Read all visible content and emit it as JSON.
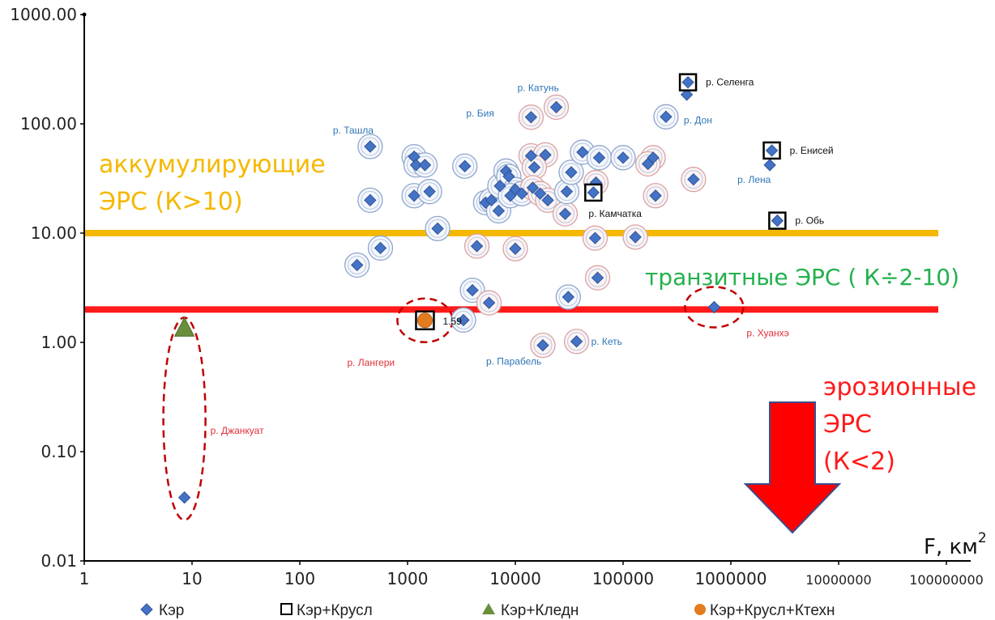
{
  "chart_data": {
    "type": "scatter",
    "x_scale": "log",
    "y_scale": "log",
    "xlim": [
      1,
      100000000
    ],
    "ylim": [
      0.01,
      1000
    ],
    "xlabel_main": "F, км",
    "xlabel_sup": "2",
    "x_ticks": [
      "1",
      "10",
      "100",
      "1000",
      "10000",
      "100000",
      "1000000",
      "10000000",
      "100000000"
    ],
    "y_ticks": [
      "0.01",
      "0.10",
      "1.00",
      "10.00",
      "100.00",
      "1000.00"
    ],
    "thresholds": [
      {
        "value": 10,
        "color": "#F5B800"
      },
      {
        "value": 2,
        "color": "#FF1A1A"
      }
    ],
    "zones": [
      {
        "line1": "аккумулирующие",
        "line2": "ЭРС (К>10)",
        "color": "#F5B800"
      },
      {
        "line1": "транзитные ЭРС ( К÷2-10)",
        "color": "#22B14C"
      },
      {
        "line1": "эрозионные",
        "line2": "ЭРС",
        "line3": "(К<2)",
        "color": "#FF1A1A"
      }
    ],
    "colors": {
      "kэр": "#4472C4",
      "bg": "#ffffff",
      "threshold_high": "#F5B800",
      "threshold_low": "#FF1A1A",
      "arrow": "#FF0000",
      "arrow_border": "#3B4E8C",
      "dashed": "#C00000",
      "label_blue": "#2E75B6",
      "label_red": "#E0303A"
    },
    "legend": [
      {
        "label": "Кэр",
        "marker": "diamond",
        "color": "#4472C4"
      },
      {
        "label": "Кэр+Крусл",
        "marker": "square",
        "color": "#000000"
      },
      {
        "label": "Кэр+Кледн",
        "marker": "triangle",
        "color": "#6B8E3D"
      },
      {
        "label": "Кэр+Крусл+Ктехн",
        "marker": "circle",
        "color": "#E37C1F"
      }
    ],
    "series": [
      {
        "name": "Кэр",
        "marker": "diamond",
        "points": [
          {
            "x": 450,
            "y": 62,
            "ring": "blue"
          },
          {
            "x": 450,
            "y": 20,
            "ring": "blue"
          },
          {
            "x": 340,
            "y": 5.1,
            "ring": "blue"
          },
          {
            "x": 560,
            "y": 7.3,
            "ring": "blue"
          },
          {
            "x": 1150,
            "y": 50,
            "ring": "blue"
          },
          {
            "x": 1200,
            "y": 42,
            "ring": "blue"
          },
          {
            "x": 1450,
            "y": 42,
            "ring": "blue"
          },
          {
            "x": 1150,
            "y": 22,
            "ring": "blue"
          },
          {
            "x": 1600,
            "y": 24,
            "ring": "blue"
          },
          {
            "x": 1900,
            "y": 11,
            "ring": "blue"
          },
          {
            "x": 3400,
            "y": 41,
            "ring": "blue"
          },
          {
            "x": 5300,
            "y": 19,
            "ring": "blue"
          },
          {
            "x": 6000,
            "y": 20,
            "ring": "blue"
          },
          {
            "x": 7200,
            "y": 27,
            "ring": "blue"
          },
          {
            "x": 7000,
            "y": 16,
            "ring": "blue"
          },
          {
            "x": 8200,
            "y": 37,
            "ring": "blue"
          },
          {
            "x": 8700,
            "y": 33,
            "ring": "blue"
          },
          {
            "x": 10000,
            "y": 25,
            "ring": "blue"
          },
          {
            "x": 9000,
            "y": 22,
            "ring": "blue"
          },
          {
            "x": 11500,
            "y": 23,
            "ring": "blue"
          },
          {
            "x": 14000,
            "y": 115,
            "ring": "red"
          },
          {
            "x": 24000,
            "y": 142,
            "ring": "red"
          },
          {
            "x": 14000,
            "y": 51,
            "ring": "red"
          },
          {
            "x": 19000,
            "y": 52,
            "ring": "red"
          },
          {
            "x": 15000,
            "y": 40,
            "ring": "red"
          },
          {
            "x": 14500,
            "y": 26,
            "ring": "red"
          },
          {
            "x": 17000,
            "y": 23,
            "ring": "red"
          },
          {
            "x": 20000,
            "y": 20,
            "ring": "red"
          },
          {
            "x": 29000,
            "y": 15,
            "ring": "red"
          },
          {
            "x": 30000,
            "y": 24,
            "ring": "blue"
          },
          {
            "x": 33000,
            "y": 36,
            "ring": "blue"
          },
          {
            "x": 42000,
            "y": 55,
            "ring": "blue"
          },
          {
            "x": 60000,
            "y": 49,
            "ring": "blue"
          },
          {
            "x": 56000,
            "y": 29,
            "ring": "red"
          },
          {
            "x": 100000,
            "y": 49,
            "ring": "blue"
          },
          {
            "x": 190000,
            "y": 49,
            "ring": "red"
          },
          {
            "x": 170000,
            "y": 43,
            "ring": "red"
          },
          {
            "x": 200000,
            "y": 22,
            "ring": "red"
          },
          {
            "x": 450000,
            "y": 31,
            "ring": "red"
          },
          {
            "x": 250000,
            "y": 116,
            "ring": "blue"
          },
          {
            "x": 390000,
            "y": 185,
            "ring": "none"
          },
          {
            "x": 2300000,
            "y": 42,
            "ring": "none"
          },
          {
            "x": 130000,
            "y": 9.2,
            "ring": "red"
          },
          {
            "x": 55000,
            "y": 9.0,
            "ring": "red"
          },
          {
            "x": 10000,
            "y": 7.2,
            "ring": "red"
          },
          {
            "x": 4400,
            "y": 7.6,
            "ring": "red"
          },
          {
            "x": 58000,
            "y": 3.9,
            "ring": "red"
          },
          {
            "x": 4000,
            "y": 3.0,
            "ring": "blue"
          },
          {
            "x": 5700,
            "y": 2.3,
            "ring": "red"
          },
          {
            "x": 31000,
            "y": 2.6,
            "ring": "blue"
          },
          {
            "x": 3300,
            "y": 1.6,
            "ring": "blue"
          },
          {
            "x": 18000,
            "y": 0.94,
            "ring": "red"
          },
          {
            "x": 37000,
            "y": 1.02,
            "ring": "red"
          },
          {
            "x": 700000,
            "y": 2.1,
            "ring": "none"
          },
          {
            "x": 8.5,
            "y": 0.038,
            "ring": "none"
          }
        ]
      },
      {
        "name": "Кэр+Крусл",
        "marker": "square",
        "points": [
          {
            "x": 400000,
            "y": 240
          },
          {
            "x": 2400000,
            "y": 57
          },
          {
            "x": 2700000,
            "y": 13
          },
          {
            "x": 53000,
            "y": 23.5
          }
        ]
      },
      {
        "name": "Кэр+Кледн",
        "marker": "triangle",
        "points": [
          {
            "x": 8.5,
            "y": 1.35
          }
        ]
      },
      {
        "name": "Кэр+Крусл+Ктехн",
        "marker": "circle",
        "points": [
          {
            "x": 1450,
            "y": 1.59
          }
        ]
      }
    ],
    "annotations": [
      {
        "text": "р. Селенга",
        "x": 400000,
        "y": 240,
        "dx": 22,
        "dy": 4,
        "color": "#111111"
      },
      {
        "text": "р. Енисей",
        "x": 2400000,
        "y": 57,
        "dx": 22,
        "dy": 4,
        "color": "#111111"
      },
      {
        "text": "р. Обь",
        "x": 2700000,
        "y": 13,
        "dx": 22,
        "dy": 4,
        "color": "#111111"
      },
      {
        "text": "р. Камчатка",
        "x": 53000,
        "y": 23.5,
        "dx": -6,
        "dy": 30,
        "color": "#111111"
      },
      {
        "text": "1.59",
        "x": 1450,
        "y": 1.59,
        "dx": 22,
        "dy": 5,
        "color": "#111111"
      },
      {
        "text": "р. Катунь",
        "x": 24000,
        "y": 142,
        "dx": -48,
        "dy": -20,
        "color": "#2E75B6"
      },
      {
        "text": "р. Бия",
        "x": 14000,
        "y": 115,
        "dx": -80,
        "dy": -1,
        "color": "#2E75B6"
      },
      {
        "text": "р. Ташла",
        "x": 450,
        "y": 62,
        "dx": -46,
        "dy": -16,
        "color": "#2E75B6"
      },
      {
        "text": "р. Дон",
        "x": 250000,
        "y": 116,
        "dx": 22,
        "dy": 8,
        "color": "#2E75B6"
      },
      {
        "text": "р. Лена",
        "x": 2300000,
        "y": 42,
        "dx": -40,
        "dy": 22,
        "color": "#2E75B6"
      },
      {
        "text": "р. Кеть",
        "x": 37000,
        "y": 1.02,
        "dx": 18,
        "dy": 4,
        "color": "#2E75B6"
      },
      {
        "text": "р. Парабель",
        "x": 18000,
        "y": 0.94,
        "dx": -70,
        "dy": 24,
        "color": "#2E75B6"
      },
      {
        "text": "р. Лангери",
        "x": 1450,
        "y": 1.59,
        "dx": -96,
        "dy": 56,
        "color": "#E0303A"
      },
      {
        "text": "р. Хуанхэ",
        "x": 700000,
        "y": 2.1,
        "dx": 40,
        "dy": 36,
        "color": "#E0303A"
      },
      {
        "text": "р. Джанкуат",
        "x": 8.5,
        "y": 0.15,
        "dx": 32,
        "dy": 2,
        "color": "#E0303A"
      }
    ],
    "dashed_ellipses": [
      {
        "x": 8.5,
        "cy": 0.2,
        "rx": 26,
        "ry": 125
      },
      {
        "x": 1450,
        "cy": 1.59,
        "rx": 34,
        "ry": 27
      },
      {
        "x": 700000,
        "cy": 2.1,
        "rx": 36,
        "ry": 25
      }
    ]
  }
}
